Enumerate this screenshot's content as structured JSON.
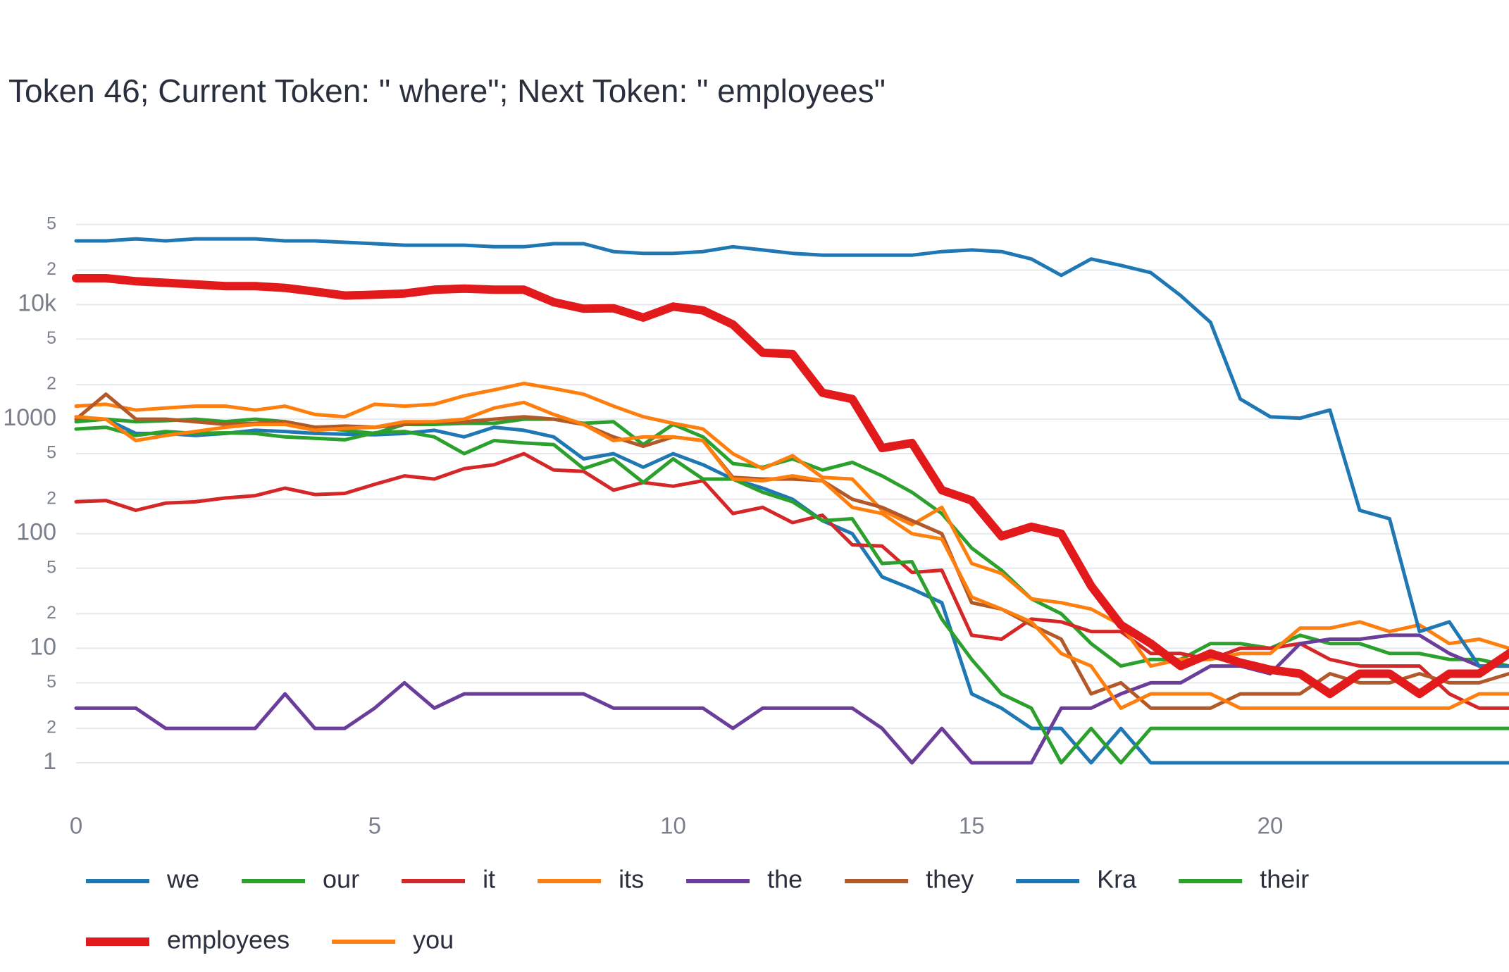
{
  "chart_data": {
    "type": "line",
    "title": "Token 46; Current Token: \" where\"; Next Token: \" employees\"",
    "x": [
      0,
      0.5,
      1,
      1.5,
      2,
      2.5,
      3,
      3.5,
      4,
      4.5,
      5,
      5.5,
      6,
      6.5,
      7,
      7.5,
      8,
      8.5,
      9,
      9.5,
      10,
      10.5,
      11,
      11.5,
      12,
      12.5,
      13,
      13.5,
      14,
      14.5,
      15,
      15.5,
      16,
      16.5,
      17,
      17.5,
      18,
      18.5,
      19,
      19.5,
      20,
      20.5,
      21,
      21.5,
      22,
      22.5,
      23,
      23.5,
      24
    ],
    "xlim": [
      0,
      24
    ],
    "xticks": [
      0,
      5,
      10,
      15,
      20
    ],
    "ylim": [
      0.5,
      70000
    ],
    "log_y": true,
    "grid": true,
    "yticks": [
      1,
      {
        "value": 2,
        "label": "2"
      },
      {
        "value": 5,
        "label": "5"
      },
      10,
      {
        "value": 20,
        "label": "2"
      },
      {
        "value": 50,
        "label": "5"
      },
      100,
      {
        "value": 200,
        "label": "2"
      },
      {
        "value": 500,
        "label": "5"
      },
      1000,
      {
        "value": 2000,
        "label": "2"
      },
      {
        "value": 5000,
        "label": "5"
      },
      {
        "value": 10000,
        "label": "10k"
      },
      {
        "value": 20000,
        "label": "2"
      },
      {
        "value": 50000,
        "label": "5"
      }
    ],
    "series": [
      {
        "name": "we",
        "color": "#1f77b4",
        "values": [
          1000,
          1000,
          750,
          750,
          720,
          750,
          800,
          780,
          750,
          740,
          730,
          750,
          800,
          700,
          850,
          800,
          700,
          450,
          500,
          380,
          500,
          400,
          300,
          250,
          200,
          130,
          100,
          42,
          33,
          25,
          4,
          3,
          2,
          2,
          1,
          2,
          1,
          1,
          1,
          1,
          1,
          1,
          1,
          1,
          1,
          1,
          1,
          1,
          1
        ]
      },
      {
        "name": "our",
        "color": "#2ca02c",
        "values": [
          950,
          1000,
          950,
          970,
          1000,
          950,
          1000,
          950,
          850,
          800,
          750,
          900,
          900,
          920,
          920,
          1000,
          1000,
          920,
          950,
          600,
          900,
          700,
          410,
          380,
          450,
          360,
          420,
          320,
          230,
          150,
          75,
          48,
          27,
          20,
          11,
          7,
          8,
          8,
          11,
          11,
          10,
          13,
          11,
          11,
          9,
          9,
          8,
          8,
          7
        ]
      },
      {
        "name": "it",
        "color": "#d62728",
        "values": [
          190,
          195,
          160,
          185,
          190,
          205,
          215,
          250,
          220,
          225,
          270,
          320,
          300,
          370,
          400,
          500,
          360,
          350,
          240,
          280,
          260,
          290,
          150,
          170,
          125,
          145,
          80,
          78,
          46,
          48,
          13,
          12,
          18,
          17,
          14,
          14,
          9,
          9,
          8,
          10,
          10,
          11,
          8,
          7,
          7,
          7,
          4,
          3,
          3
        ]
      },
      {
        "name": "its",
        "color": "#ff7f0e",
        "values": [
          1300,
          1350,
          1200,
          1250,
          1300,
          1300,
          1200,
          1300,
          1100,
          1050,
          1350,
          1300,
          1350,
          1600,
          1800,
          2050,
          1850,
          1650,
          1300,
          1050,
          920,
          820,
          500,
          370,
          480,
          310,
          300,
          160,
          120,
          170,
          55,
          45,
          27,
          25,
          22,
          16,
          7,
          8,
          8,
          9,
          9,
          15,
          15,
          17,
          14,
          16,
          11,
          12,
          10
        ]
      },
      {
        "name": "the",
        "color": "#6a3d9a",
        "values": [
          3,
          3,
          3,
          2,
          2,
          2,
          2,
          4,
          2,
          2,
          3,
          5,
          3,
          4,
          4,
          4,
          4,
          4,
          3,
          3,
          3,
          3,
          2,
          3,
          3,
          3,
          3,
          2,
          1,
          2,
          1,
          1,
          1,
          3,
          3,
          4,
          5,
          5,
          7,
          7,
          6,
          11,
          12,
          12,
          13,
          13,
          9,
          7,
          7
        ]
      },
      {
        "name": "they",
        "color": "#b15928",
        "values": [
          1000,
          1650,
          1000,
          1000,
          950,
          900,
          920,
          950,
          850,
          870,
          850,
          900,
          950,
          950,
          1000,
          1050,
          1000,
          900,
          700,
          580,
          700,
          650,
          310,
          300,
          300,
          290,
          200,
          170,
          130,
          100,
          25,
          22,
          16,
          12,
          4,
          5,
          3,
          3,
          3,
          4,
          4,
          4,
          6,
          5,
          5,
          6,
          5,
          5,
          6
        ]
      },
      {
        "name": "Kra",
        "color": "#1f77b4",
        "values": [
          36000,
          36000,
          37500,
          36000,
          37500,
          37500,
          37500,
          36000,
          36000,
          35000,
          34000,
          33000,
          33000,
          33000,
          32000,
          32000,
          34000,
          34000,
          29000,
          28000,
          28000,
          29000,
          32000,
          30000,
          28000,
          27000,
          27000,
          27000,
          27000,
          29000,
          30000,
          29000,
          25000,
          18000,
          25000,
          22000,
          19000,
          12000,
          7000,
          1500,
          1050,
          1020,
          1200,
          160,
          135,
          14,
          17,
          7,
          7
        ]
      },
      {
        "name": "their",
        "color": "#2ca02c",
        "values": [
          820,
          850,
          720,
          780,
          750,
          760,
          750,
          700,
          680,
          660,
          760,
          780,
          700,
          500,
          650,
          620,
          600,
          370,
          450,
          280,
          450,
          300,
          300,
          230,
          190,
          130,
          135,
          55,
          57,
          18,
          8,
          4,
          3,
          1,
          2,
          1,
          2,
          2,
          2,
          2,
          2,
          2,
          2,
          2,
          2,
          2,
          2,
          2,
          2
        ]
      },
      {
        "name": "employees",
        "color": "#e31a1c",
        "values": [
          17000,
          17000,
          16000,
          15500,
          15000,
          14500,
          14500,
          14000,
          13000,
          12000,
          12200,
          12500,
          13500,
          13800,
          13500,
          13500,
          10500,
          9200,
          9300,
          7700,
          9600,
          8900,
          6700,
          3800,
          3700,
          1700,
          1500,
          560,
          620,
          240,
          195,
          95,
          115,
          100,
          35,
          16,
          11,
          7,
          9,
          7.5,
          6.5,
          6,
          4,
          6,
          6,
          4,
          6,
          6,
          9
        ]
      },
      {
        "name": "you",
        "color": "#ff7f0e",
        "values": [
          1050,
          1000,
          650,
          720,
          780,
          850,
          900,
          900,
          800,
          830,
          850,
          950,
          950,
          1000,
          1250,
          1400,
          1100,
          900,
          650,
          700,
          700,
          650,
          300,
          290,
          320,
          290,
          170,
          150,
          100,
          90,
          28,
          22,
          17,
          9,
          7,
          3,
          4,
          4,
          4,
          3,
          3,
          3,
          3,
          3,
          3,
          3,
          3,
          4,
          4
        ]
      }
    ]
  }
}
